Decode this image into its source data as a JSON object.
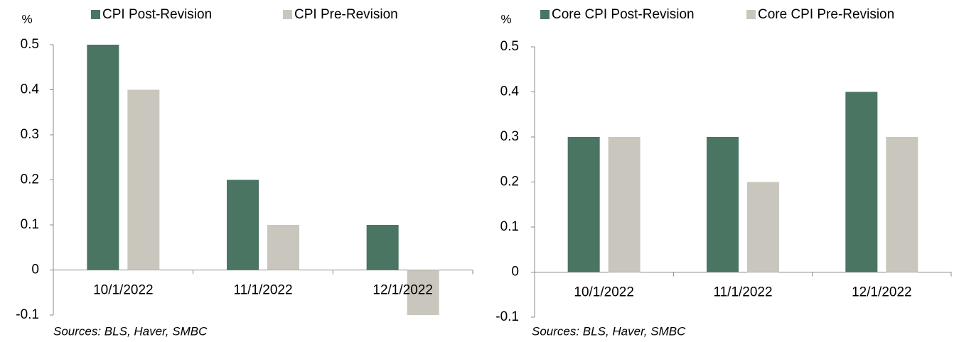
{
  "chart_data": [
    {
      "type": "bar",
      "y_label": "%",
      "categories": [
        "10/1/2022",
        "11/1/2022",
        "12/1/2022"
      ],
      "series": [
        {
          "name": "CPI Post-Revision",
          "color": "#4a7563",
          "values": [
            0.5,
            0.2,
            0.1
          ]
        },
        {
          "name": "CPI Pre-Revision",
          "color": "#c9c7bd",
          "values": [
            0.4,
            0.1,
            -0.1
          ]
        }
      ],
      "ylim": [
        -0.1,
        0.5
      ],
      "yticks": [
        -0.1,
        0,
        0.1,
        0.2,
        0.3,
        0.4,
        0.5
      ],
      "legend": "top",
      "source": "Sources: BLS, Haver, SMBC"
    },
    {
      "type": "bar",
      "y_label": "%",
      "categories": [
        "10/1/2022",
        "11/1/2022",
        "12/1/2022"
      ],
      "series": [
        {
          "name": "Core CPI Post-Revision",
          "color": "#4a7563",
          "values": [
            0.3,
            0.3,
            0.4
          ]
        },
        {
          "name": "Core CPI Pre-Revision",
          "color": "#c9c7bd",
          "values": [
            0.3,
            0.2,
            0.3
          ]
        }
      ],
      "ylim": [
        -0.1,
        0.5
      ],
      "yticks": [
        -0.1,
        0,
        0.1,
        0.2,
        0.3,
        0.4,
        0.5
      ],
      "legend": "top",
      "source": "Sources: BLS, Haver, SMBC"
    }
  ]
}
